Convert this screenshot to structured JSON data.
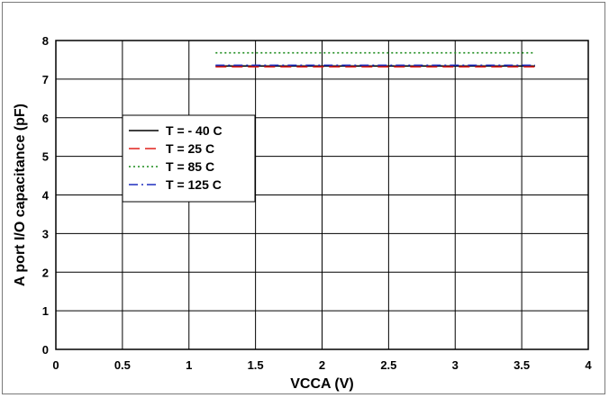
{
  "chart_data": {
    "type": "line",
    "title": "",
    "xlabel": "VCCA (V)",
    "ylabel": "A port I/O capacitance (pF)",
    "xlim": [
      0,
      4
    ],
    "ylim": [
      0,
      8
    ],
    "x_ticks": [
      "0",
      "0.5",
      "1",
      "1.5",
      "2",
      "2.5",
      "3",
      "3.5",
      "4"
    ],
    "y_ticks": [
      "0",
      "1",
      "2",
      "3",
      "4",
      "5",
      "6",
      "7",
      "8"
    ],
    "grid": true,
    "legend_position": "left-middle",
    "series": [
      {
        "name": "T = - 40 C",
        "color": "#000000",
        "dash": "solid",
        "points": [
          [
            1.2,
            7.34
          ],
          [
            3.6,
            7.34
          ]
        ]
      },
      {
        "name": "T = 25 C",
        "color": "#e0201c",
        "dash": "dashed",
        "points": [
          [
            1.2,
            7.32
          ],
          [
            3.6,
            7.32
          ]
        ]
      },
      {
        "name": "T = 85 C",
        "color": "#1a8a1a",
        "dash": "dotted",
        "points": [
          [
            1.2,
            7.68
          ],
          [
            3.6,
            7.68
          ]
        ]
      },
      {
        "name": "T = 125 C",
        "color": "#1f2fbf",
        "dash": "dashdot",
        "points": [
          [
            1.2,
            7.36
          ],
          [
            3.6,
            7.36
          ]
        ]
      }
    ]
  }
}
